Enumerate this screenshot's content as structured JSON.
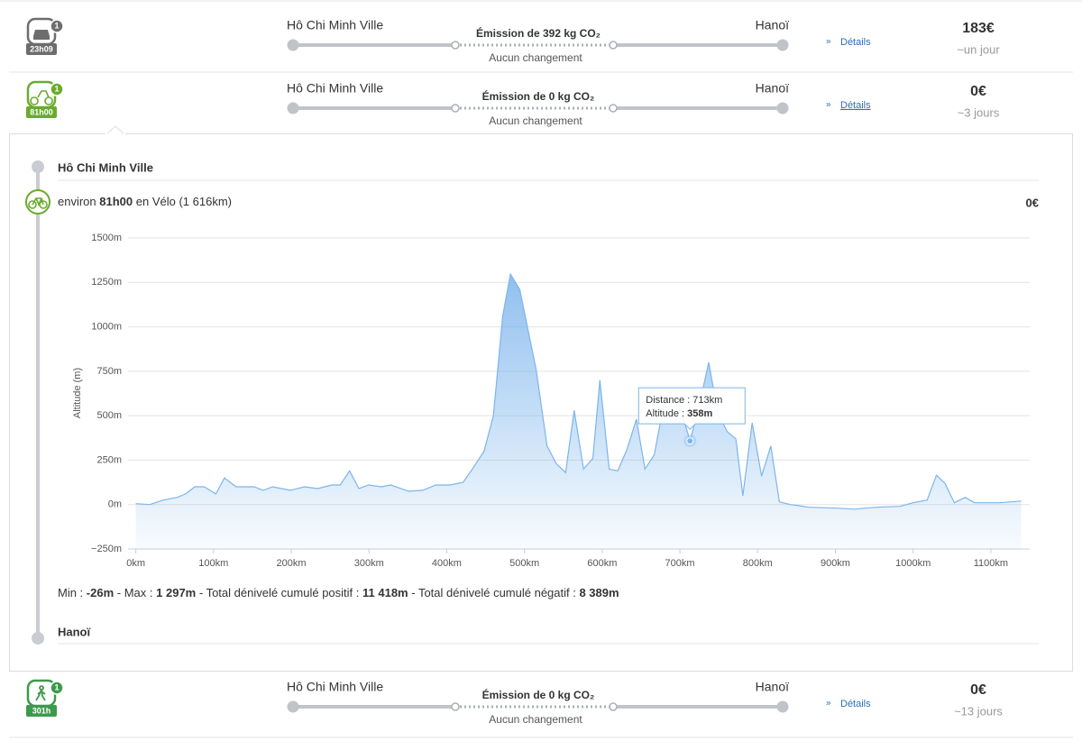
{
  "routes": [
    {
      "mode": "car",
      "duration_badge": "23h09",
      "count": "1",
      "from": "Hô Chi Minh Ville",
      "to": "Hanoï",
      "emission": "Émission de 392 kg CO₂",
      "changes": "Aucun changement",
      "details": "Détails",
      "price": "183€",
      "duration": "~un jour"
    },
    {
      "mode": "bike",
      "duration_badge": "81h00",
      "count": "1",
      "from": "Hô Chi Minh Ville",
      "to": "Hanoï",
      "emission": "Émission de 0 kg CO₂",
      "changes": "Aucun changement",
      "details": "Détails",
      "price": "0€",
      "duration": "~3 jours"
    },
    {
      "mode": "walk",
      "duration_badge": "301h",
      "count": "1",
      "from": "Hô Chi Minh Ville",
      "to": "Hanoï",
      "emission": "Émission de 0 kg CO₂",
      "changes": "Aucun changement",
      "details": "Détails",
      "price": "0€",
      "duration": "~13 jours"
    }
  ],
  "detail": {
    "start": "Hô Chi Minh Ville",
    "leg_prefix": "environ",
    "leg_time": "81h00",
    "leg_suffix": "en Vélo (1 616km)",
    "price": "0€",
    "end": "Hanoï",
    "stats": [
      {
        "label": "Min :",
        "value": "-26m"
      },
      {
        "label": "- Max :",
        "value": "1 297m"
      },
      {
        "label": "- Total dénivelé cumulé positif :",
        "value": "11 418m"
      },
      {
        "label": "- Total dénivelé cumulé négatif :",
        "value": "8 389m"
      }
    ],
    "tooltip": {
      "distance_label": "Distance :",
      "distance": "713km",
      "altitude_label": "Altitude :",
      "altitude": "358m"
    }
  },
  "chart_data": {
    "type": "area",
    "y_label": "Altitude (m)",
    "color": "#7cb5ec",
    "x": [
      0,
      18,
      35,
      53,
      64,
      76,
      88,
      103,
      114,
      129,
      152,
      164,
      176,
      199,
      217,
      234,
      252,
      263,
      275,
      287,
      299,
      316,
      328,
      351,
      369,
      386,
      404,
      421,
      433,
      448,
      460,
      472,
      482,
      494,
      515,
      529,
      541,
      553,
      564,
      576,
      588,
      597,
      609,
      620,
      632,
      644,
      655,
      667,
      679,
      696,
      713,
      725,
      737,
      749,
      761,
      772,
      781,
      793,
      805,
      817,
      828,
      842,
      866,
      901,
      924,
      953,
      983,
      1000,
      1018,
      1030,
      1041,
      1053,
      1067,
      1079,
      1112,
      1139
    ],
    "values": [
      5,
      0,
      25,
      40,
      60,
      100,
      100,
      60,
      150,
      100,
      100,
      80,
      100,
      80,
      100,
      90,
      110,
      110,
      190,
      90,
      110,
      100,
      110,
      75,
      80,
      110,
      110,
      125,
      200,
      300,
      500,
      1060,
      1297,
      1210,
      760,
      330,
      230,
      180,
      530,
      200,
      260,
      700,
      200,
      190,
      310,
      480,
      200,
      280,
      560,
      610,
      358,
      560,
      800,
      510,
      410,
      370,
      50,
      460,
      160,
      330,
      15,
      0,
      -15,
      -20,
      -26,
      -15,
      -10,
      10,
      25,
      165,
      120,
      10,
      40,
      10,
      10,
      20
    ],
    "highlight_index": 50,
    "xlim": [
      -10,
      1150
    ],
    "ylim": [
      -250,
      1500
    ],
    "xticks": [
      {
        "value": 0,
        "label": "0km"
      },
      {
        "value": 100,
        "label": "100km"
      },
      {
        "value": 200,
        "label": "200km"
      },
      {
        "value": 300,
        "label": "300km"
      },
      {
        "value": 400,
        "label": "400km"
      },
      {
        "value": 500,
        "label": "500km"
      },
      {
        "value": 600,
        "label": "600km"
      },
      {
        "value": 700,
        "label": "700km"
      },
      {
        "value": 800,
        "label": "800km"
      },
      {
        "value": 900,
        "label": "900km"
      },
      {
        "value": 1000,
        "label": "1000km"
      },
      {
        "value": 1100,
        "label": "1100km"
      }
    ],
    "yticks": [
      {
        "value": -250,
        "label": "−250m"
      },
      {
        "value": 0,
        "label": "0m"
      },
      {
        "value": 250,
        "label": "250m"
      },
      {
        "value": 500,
        "label": "500m"
      },
      {
        "value": 750,
        "label": "750m"
      },
      {
        "value": 1000,
        "label": "1000m"
      },
      {
        "value": 1250,
        "label": "1250m"
      },
      {
        "value": 1500,
        "label": "1500m"
      }
    ],
    "grid": true
  }
}
